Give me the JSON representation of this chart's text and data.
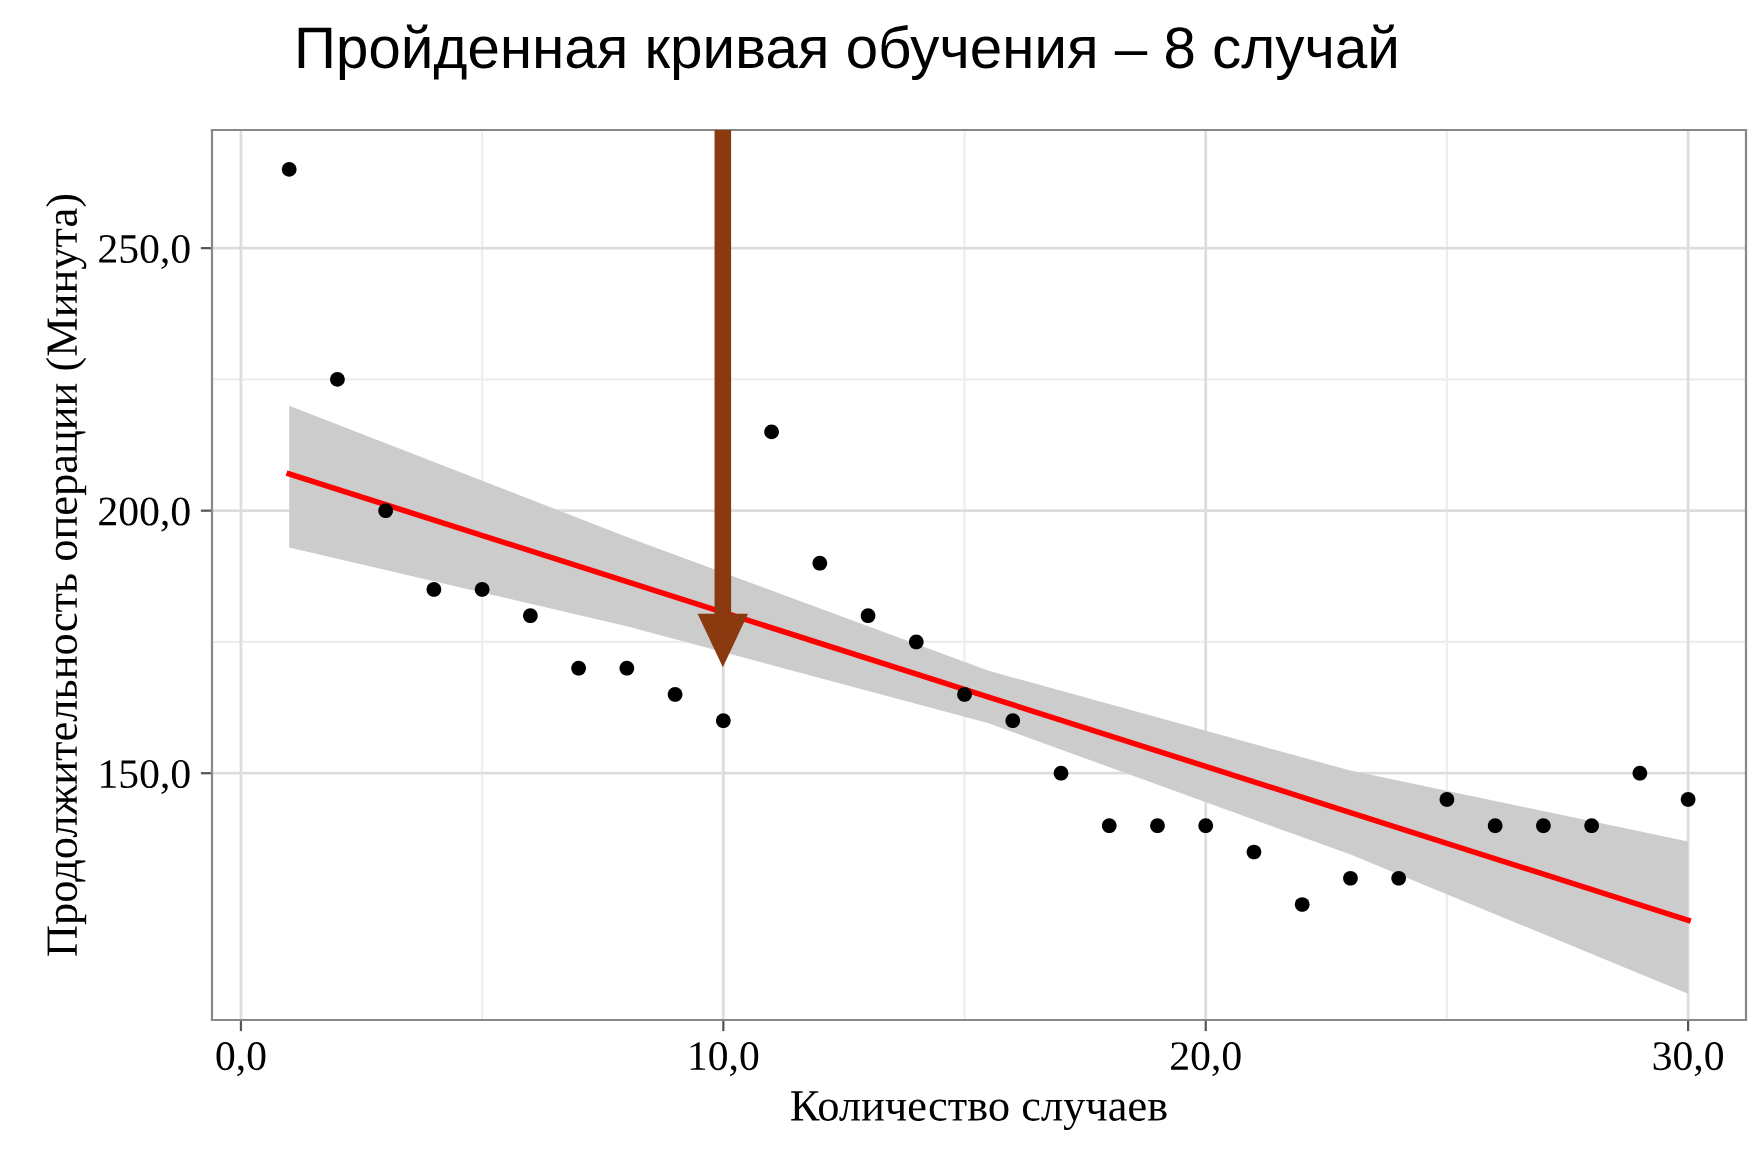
{
  "chart_data": {
    "type": "scatter",
    "title": "Пройденная кривая обучения – 8 случай",
    "xlabel": "Количество случаев",
    "ylabel": "Продолжительность операции (Минута)",
    "x": [
      1,
      2,
      3,
      4,
      5,
      6,
      7,
      8,
      9,
      10,
      11,
      12,
      13,
      14,
      15,
      16,
      17,
      18,
      19,
      20,
      21,
      22,
      23,
      24,
      25,
      26,
      27,
      28,
      29,
      30
    ],
    "series": [
      {
        "color": "#000000",
        "marker": "circle",
        "values": [
          265,
          225,
          200,
          185,
          185,
          180,
          170,
          170,
          165,
          160,
          215,
          190,
          180,
          175,
          165,
          160,
          150,
          140,
          140,
          140,
          135,
          125,
          130,
          130,
          145,
          140,
          140,
          140,
          150,
          145
        ]
      },
      {
        "type": "line",
        "color": "#ff0000",
        "marker": "none",
        "x": [
          1,
          8,
          15.5,
          23,
          30
        ],
        "values": [
          207,
          186.5,
          164.5,
          142.5,
          122
        ],
        "lower": [
          193,
          178,
          159.5,
          134.5,
          108
        ],
        "upper": [
          220,
          195,
          169.5,
          150.5,
          137
        ]
      }
    ],
    "xlim": [
      -0.6,
      31.2
    ],
    "ylim": [
      103,
      272.5
    ],
    "xticks": [
      {
        "value": 0,
        "label": "0,0"
      },
      {
        "value": 10,
        "label": "10,0"
      },
      {
        "value": 20,
        "label": "20,0"
      },
      {
        "value": 30,
        "label": "30,0"
      }
    ],
    "yticks": [
      {
        "value": 150,
        "label": "150,0"
      },
      {
        "value": 200,
        "label": "200,0"
      },
      {
        "value": 250,
        "label": "250,0"
      }
    ],
    "grid": true
  }
}
